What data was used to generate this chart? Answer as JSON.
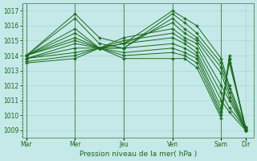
{
  "xlabel": "Pression niveau de la mer( hPa )",
  "bg_color": "#c5e8e8",
  "grid_color": "#a8d0d0",
  "line_color": "#1a6b1a",
  "ylim": [
    1008.5,
    1017.5
  ],
  "yticks": [
    1009,
    1010,
    1011,
    1012,
    1013,
    1014,
    1015,
    1016,
    1017
  ],
  "xtick_labels": [
    "Mar",
    "Mer",
    "Jeu",
    "Ven",
    "Sam",
    "Dir"
  ],
  "xtick_positions": [
    0,
    24,
    48,
    72,
    96,
    108
  ],
  "series": [
    [
      1014.0,
      1016.8,
      1015.2,
      1014.8,
      1017.0,
      1016.5,
      1016.0,
      1013.8,
      1012.0,
      1009.2
    ],
    [
      1014.0,
      1016.5,
      1014.8,
      1014.5,
      1016.8,
      1016.2,
      1015.5,
      1013.5,
      1011.8,
      1009.0
    ],
    [
      1014.0,
      1015.8,
      1014.5,
      1014.5,
      1016.5,
      1015.8,
      1015.2,
      1013.2,
      1011.5,
      1009.0
    ],
    [
      1014.0,
      1015.5,
      1014.5,
      1014.8,
      1016.2,
      1015.5,
      1015.0,
      1012.8,
      1011.2,
      1009.1
    ],
    [
      1014.0,
      1015.2,
      1014.5,
      1015.2,
      1015.8,
      1015.2,
      1014.8,
      1012.0,
      1011.0,
      1009.0
    ],
    [
      1014.0,
      1015.0,
      1014.5,
      1015.0,
      1015.5,
      1015.0,
      1014.5,
      1011.5,
      1010.5,
      1009.1
    ],
    [
      1013.8,
      1014.8,
      1014.5,
      1014.8,
      1015.2,
      1014.8,
      1014.2,
      1011.0,
      1010.2,
      1009.0
    ],
    [
      1013.8,
      1014.5,
      1014.5,
      1014.5,
      1014.8,
      1014.5,
      1014.0,
      1010.5,
      1013.5,
      1009.2
    ],
    [
      1013.8,
      1014.2,
      1014.5,
      1014.2,
      1014.5,
      1014.2,
      1013.8,
      1010.2,
      1013.8,
      1009.0
    ],
    [
      1013.6,
      1014.0,
      1014.5,
      1014.0,
      1014.2,
      1014.0,
      1013.5,
      1010.0,
      1014.0,
      1009.0
    ],
    [
      1013.5,
      1013.8,
      1014.5,
      1013.8,
      1013.8,
      1013.8,
      1013.2,
      1009.8,
      1013.8,
      1009.2
    ]
  ],
  "x_points": [
    0,
    24,
    36,
    48,
    72,
    78,
    84,
    96,
    100,
    108
  ],
  "vlines": [
    0,
    24,
    48,
    72,
    96
  ]
}
